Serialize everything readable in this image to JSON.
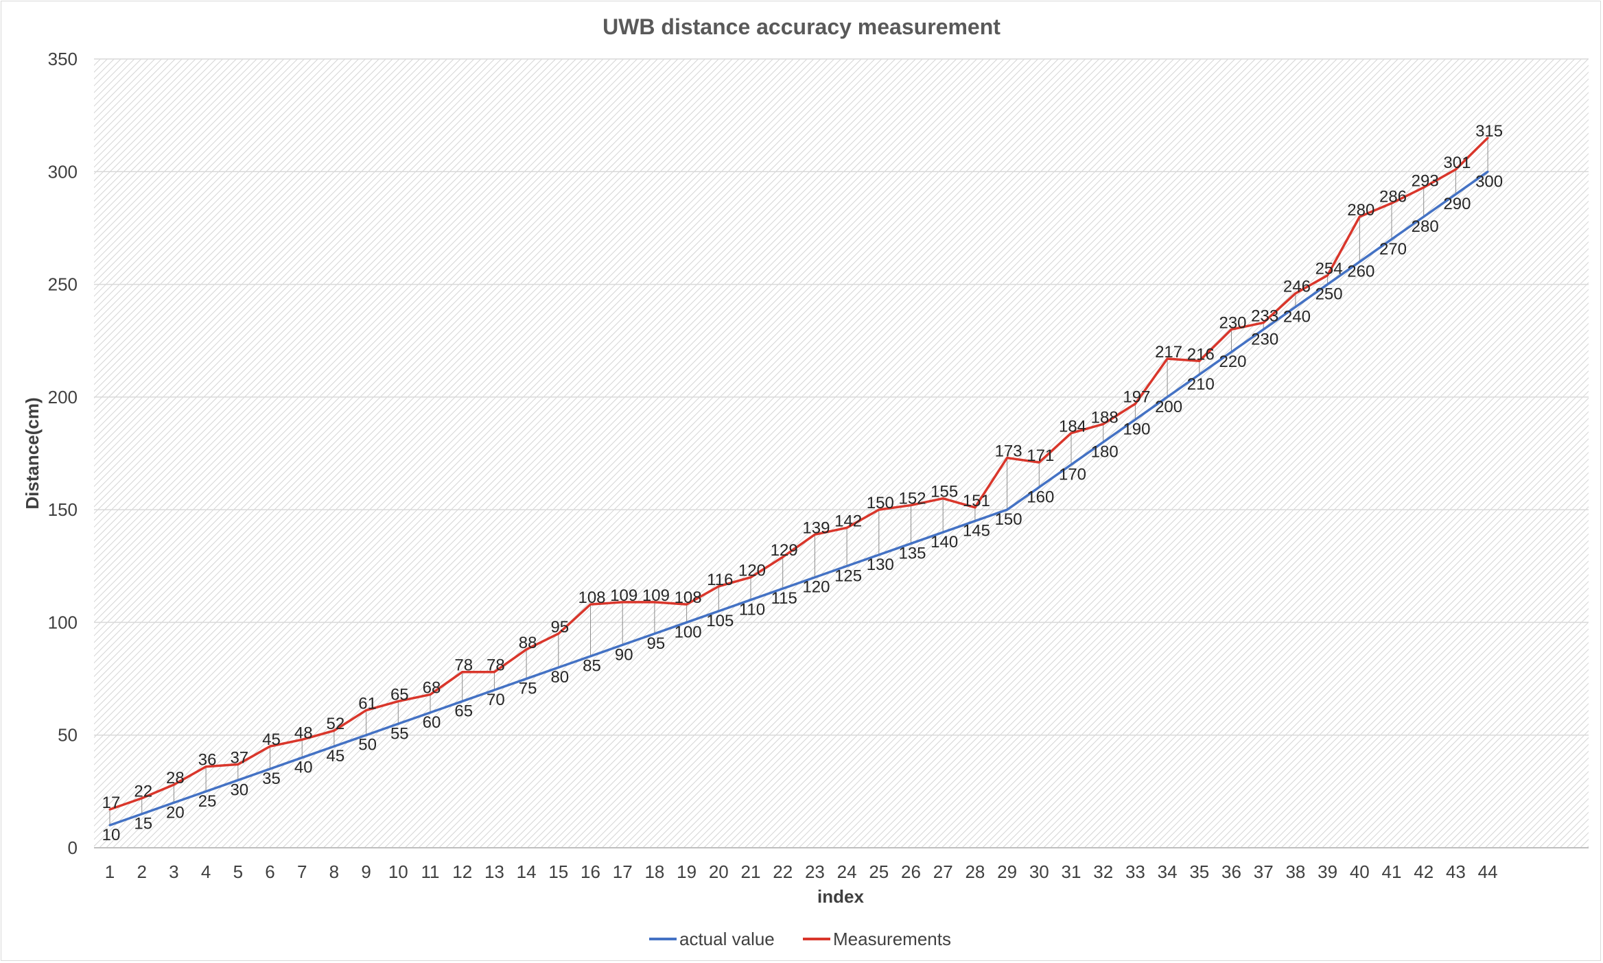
{
  "chart_data": {
    "type": "line",
    "title": "UWB distance accuracy measurement",
    "xlabel": "index",
    "ylabel": "Distance(cm)",
    "ylim": [
      0,
      350
    ],
    "yticks": [
      0,
      50,
      100,
      150,
      200,
      250,
      300,
      350
    ],
    "grid": true,
    "legend_position": "bottom",
    "categories": [
      "1",
      "2",
      "3",
      "4",
      "5",
      "6",
      "7",
      "8",
      "9",
      "10",
      "11",
      "12",
      "13",
      "14",
      "15",
      "16",
      "17",
      "18",
      "19",
      "20",
      "21",
      "22",
      "23",
      "24",
      "25",
      "26",
      "27",
      "28",
      "29",
      "30",
      "31",
      "32",
      "33",
      "34",
      "35",
      "36",
      "37",
      "38",
      "39",
      "40",
      "41",
      "42",
      "43",
      "44"
    ],
    "series": [
      {
        "name": "actual value",
        "color": "#4472c4",
        "values": [
          10,
          15,
          20,
          25,
          30,
          35,
          40,
          45,
          50,
          55,
          60,
          65,
          70,
          75,
          80,
          85,
          90,
          95,
          100,
          105,
          110,
          115,
          120,
          125,
          130,
          135,
          140,
          145,
          150,
          160,
          170,
          180,
          190,
          200,
          210,
          220,
          230,
          240,
          250,
          260,
          270,
          280,
          290,
          300
        ]
      },
      {
        "name": "Measurements",
        "color": "#d9362b",
        "values": [
          17,
          22,
          28,
          36,
          37,
          45,
          48,
          52,
          61,
          65,
          68,
          78,
          78,
          88,
          95,
          108,
          109,
          109,
          108,
          116,
          120,
          129,
          139,
          142,
          150,
          152,
          155,
          151,
          173,
          171,
          184,
          188,
          197,
          217,
          216,
          230,
          233,
          246,
          254,
          280,
          286,
          293,
          301,
          315
        ]
      }
    ]
  }
}
